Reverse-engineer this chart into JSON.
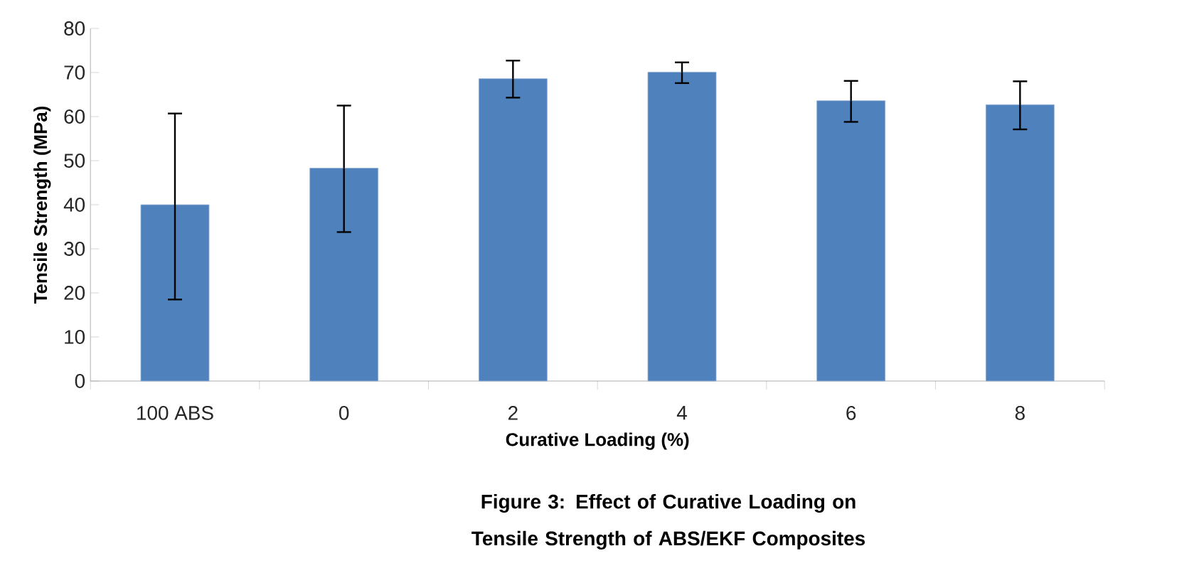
{
  "chart_data": {
    "type": "bar",
    "title": "Figure 3: Effect of Curative Loading on Tensile Strength of ABS/EKF Composites",
    "xlabel": "Curative Loading  (%)",
    "ylabel": "Tensile Strength (MPa)",
    "categories": [
      "100 ABS",
      "0",
      "2",
      "4",
      "6",
      "8"
    ],
    "values": [
      40,
      48.3,
      68.6,
      70.1,
      63.6,
      62.7
    ],
    "errors": [
      [
        18.5,
        60.7
      ],
      [
        33.8,
        62.5
      ],
      [
        64.3,
        72.7
      ],
      [
        67.6,
        72.3
      ],
      [
        58.8,
        68.1
      ],
      [
        57.1,
        68.0
      ]
    ],
    "color": "#4f81bd",
    "ylim": [
      0,
      80
    ],
    "yticks": [
      0,
      10,
      20,
      30,
      40,
      50,
      60,
      70,
      80
    ],
    "grid": false
  }
}
